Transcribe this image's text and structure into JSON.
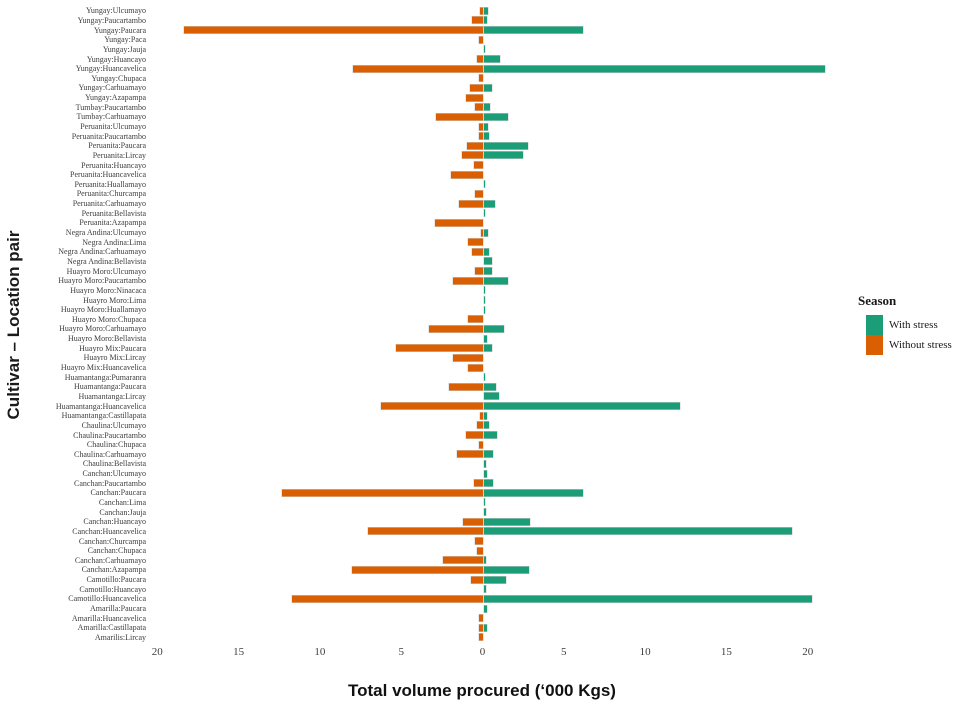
{
  "chart_data": {
    "type": "bar",
    "variant": "horizontal-diverging",
    "title": "",
    "xlabel": "Total volume procured (‘000 Kgs)",
    "ylabel": "Cultivar – Location pair",
    "xlim": [
      -20.5,
      22.5
    ],
    "x_ticks": [
      -20,
      -15,
      -10,
      -5,
      0,
      5,
      10,
      15,
      20
    ],
    "x_tick_labels": [
      "20",
      "15",
      "10",
      "5",
      "0",
      "5",
      "10",
      "15",
      "20"
    ],
    "grid": false,
    "legend": {
      "title": "Season",
      "position": "right",
      "entries": [
        {
          "label": "With stress",
          "color": "#1b9e77"
        },
        {
          "label": "Without stress",
          "color": "#d95f02"
        }
      ]
    },
    "categories": [
      "Yungay:Ulcumayo",
      "Yungay:Paucartambo",
      "Yungay:Paucara",
      "Yungay:Paca",
      "Yungay:Jauja",
      "Yungay:Huancayo",
      "Yungay:Huancavelica",
      "Yungay:Chupaca",
      "Yungay:Carhuamayo",
      "Yungay:Azapampa",
      "Tumbay:Paucartambo",
      "Tumbay:Carhuamayo",
      "Peruanita:Ulcumayo",
      "Peruanita:Paucartambo",
      "Peruanita:Paucara",
      "Peruanita:Lircay",
      "Peruanita:Huancayo",
      "Peruanita:Huancavelica",
      "Peruanita:Huallamayo",
      "Peruanita:Churcampa",
      "Peruanita:Carhuamayo",
      "Peruanita:Bellavista",
      "Peruanita:Azapampa",
      "Negra Andina:Ulcumayo",
      "Negra Andina:Lima",
      "Negra Andina:Carhuamayo",
      "Negra Andina:Bellavista",
      "Huayro Moro:Ulcumayo",
      "Huayro Moro:Paucartambo",
      "Huayro Moro:Ninacaca",
      "Huayro Moro:Lima",
      "Huayro Moro:Huallamayo",
      "Huayro Moro:Chupaca",
      "Huayro Moro:Carhuamayo",
      "Huayro Moro:Bellavista",
      "Huayro Mix:Paucara",
      "Huayro Mix:Lircay",
      "Huayro Mix:Huancavelica",
      "Huamantanga:Pumaranra",
      "Huamantanga:Paucara",
      "Huamantanga:Lircay",
      "Huamantanga:Huancavelica",
      "Huamantanga:Castillapata",
      "Chaulina:Ulcumayo",
      "Chaulina:Paucartambo",
      "Chaulina:Chupaca",
      "Chaulina:Carhuamayo",
      "Chaulina:Bellavista",
      "Canchan:Ulcumayo",
      "Canchan:Paucartambo",
      "Canchan:Paucara",
      "Canchan:Lima",
      "Canchan:Jauja",
      "Canchan:Huancayo",
      "Canchan:Huancavelica",
      "Canchan:Churcampa",
      "Canchan:Chupaca",
      "Canchan:Carhuamayo",
      "Canchan:Azapampa",
      "Camotillo:Paucara",
      "Camotillo:Huancayo",
      "Camotillo:Huancavelica",
      "Amarilla:Paucara",
      "Amarilla:Huancavelica",
      "Amarilla:Castillapata",
      "Amarilis:Lircay"
    ],
    "series": [
      {
        "name": "With stress",
        "direction": "right",
        "color": "#1b9e77",
        "values": [
          0.3,
          0.2,
          6.1,
          0,
          0.1,
          1.0,
          21.0,
          0,
          0.55,
          0,
          0.4,
          1.5,
          0.25,
          0.35,
          2.75,
          2.4,
          0,
          0,
          0.1,
          0,
          0.7,
          0.1,
          0,
          0.3,
          0,
          0.35,
          0.55,
          0.55,
          1.5,
          0.1,
          0.1,
          0.1,
          0,
          1.25,
          0.2,
          0.55,
          0,
          0,
          0.1,
          0.75,
          0.95,
          12.1,
          0.2,
          0.35,
          0.8,
          0,
          0.6,
          0.15,
          0.2,
          0.6,
          6.1,
          0.1,
          0.15,
          2.85,
          19.0,
          0,
          0,
          0.15,
          2.8,
          1.4,
          0.15,
          20.2,
          0.2,
          0,
          0.2,
          0
        ]
      },
      {
        "name": "Without stress",
        "direction": "left",
        "color": "#d95f02",
        "values": [
          0.2,
          0.7,
          18.4,
          0.25,
          0,
          0.4,
          8.0,
          0.25,
          0.8,
          1.1,
          0.5,
          2.9,
          0.25,
          0.3,
          1.0,
          1.3,
          0.6,
          2.0,
          0,
          0.5,
          1.5,
          0,
          3.0,
          0.15,
          0.95,
          0.7,
          0,
          0.5,
          1.85,
          0,
          0,
          0,
          0.95,
          3.35,
          0,
          5.4,
          1.9,
          0.95,
          0,
          2.1,
          0,
          6.3,
          0.2,
          0.4,
          1.05,
          0.3,
          1.65,
          0,
          0,
          0.6,
          12.4,
          0,
          0,
          1.25,
          7.1,
          0.5,
          0.4,
          2.5,
          8.1,
          0.75,
          0,
          11.8,
          0,
          0.3,
          0.3,
          0.3
        ]
      }
    ]
  }
}
